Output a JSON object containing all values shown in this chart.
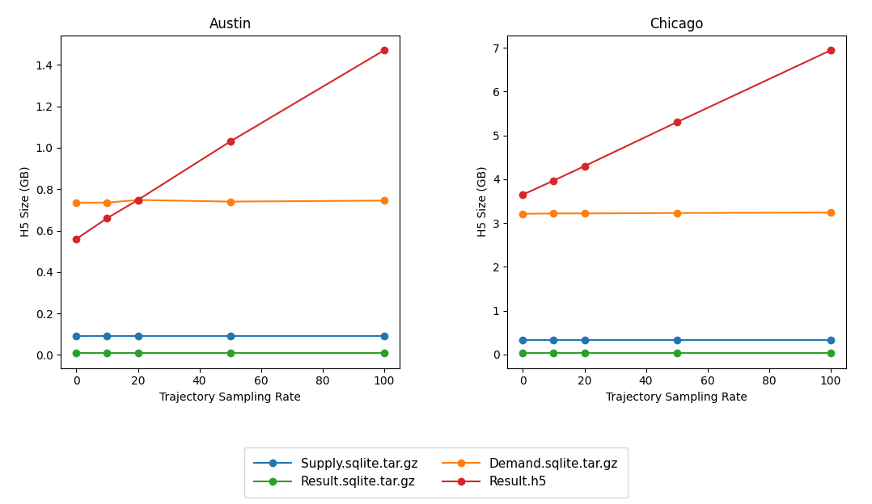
{
  "x": [
    0,
    10,
    20,
    50,
    100
  ],
  "austin": {
    "supply": [
      0.09,
      0.09,
      0.09,
      0.09,
      0.09
    ],
    "demand": [
      0.735,
      0.735,
      0.748,
      0.74,
      0.745
    ],
    "result_sqlite": [
      0.01,
      0.01,
      0.01,
      0.01,
      0.01
    ],
    "result_h5": [
      0.56,
      0.66,
      0.748,
      1.03,
      1.47
    ]
  },
  "chicago": {
    "supply": [
      0.34,
      0.34,
      0.34,
      0.34,
      0.34
    ],
    "demand": [
      3.21,
      3.22,
      3.22,
      3.23,
      3.24
    ],
    "result_sqlite": [
      0.04,
      0.04,
      0.04,
      0.04,
      0.04
    ],
    "result_h5": [
      3.65,
      3.97,
      4.3,
      5.3,
      6.94
    ]
  },
  "colors": {
    "supply": "#1f77b4",
    "demand": "#ff7f0e",
    "result_sqlite": "#2ca02c",
    "result_h5": "#d62728"
  },
  "labels": {
    "supply": "Supply.sqlite.tar.gz",
    "demand": "Demand.sqlite.tar.gz",
    "result_sqlite": "Result.sqlite.tar.gz",
    "result_h5": "Result.h5"
  },
  "xlabel": "Trajectory Sampling Rate",
  "ylabel": "H5 Size (GB)",
  "title_austin": "Austin",
  "title_chicago": "Chicago",
  "marker": "o",
  "markersize": 6,
  "linewidth": 1.5,
  "legend_order": [
    "supply",
    "result_sqlite",
    "demand",
    "result_h5"
  ]
}
